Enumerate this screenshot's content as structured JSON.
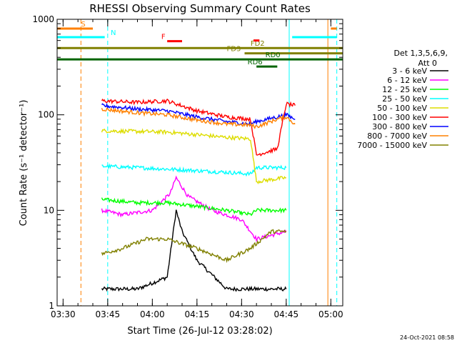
{
  "chart_data": {
    "type": "line",
    "title": "RHESSI Observing Summary Count Rates",
    "xlabel": "Start Time (26-Jul-12 03:28:02)",
    "ylabel": "Count Rate (s⁻¹ detector⁻¹)",
    "yscale": "log",
    "xlim_minutes_since_0328": [
      0,
      96
    ],
    "ylim": [
      1,
      1000
    ],
    "x_ticks": [
      "03:30",
      "03:45",
      "04:00",
      "04:15",
      "04:30",
      "04:45",
      "05:00"
    ],
    "y_ticks": [
      "1",
      "10",
      "100",
      "1000"
    ],
    "grid": false,
    "legend_placement": "right",
    "legend_header": [
      "Det 1,3,5,6,9,",
      "Att 0"
    ],
    "footer_date": "24-Oct-2021 08:58",
    "series": [
      {
        "name": "3 - 6 keV",
        "color": "#000000",
        "x": [
          "03:43",
          "03:55",
          "04:05",
          "04:08",
          "04:10",
          "04:15",
          "04:25",
          "04:35",
          "04:45"
        ],
        "values": [
          1.5,
          1.5,
          2,
          10,
          6,
          3,
          1.5,
          1.5,
          1.5
        ]
      },
      {
        "name": "6 - 12 keV",
        "color": "#ff00ff",
        "x": [
          "03:43",
          "03:50",
          "04:00",
          "04:06",
          "04:08",
          "04:12",
          "04:20",
          "04:30",
          "04:35",
          "04:45"
        ],
        "values": [
          10,
          9,
          10,
          15,
          22,
          14,
          10,
          8,
          5,
          6
        ]
      },
      {
        "name": "12 - 25 keV",
        "color": "#00ff00",
        "x": [
          "03:43",
          "03:55",
          "04:05",
          "04:15",
          "04:25",
          "04:33",
          "04:35",
          "04:45"
        ],
        "values": [
          13,
          12,
          12,
          11,
          10,
          9,
          10,
          10
        ]
      },
      {
        "name": "25 - 50 keV",
        "color": "#00ffff",
        "x": [
          "03:43",
          "03:55",
          "04:05",
          "04:15",
          "04:25",
          "04:33",
          "04:35",
          "04:45"
        ],
        "values": [
          29,
          28,
          27,
          26,
          25,
          24,
          28,
          28
        ]
      },
      {
        "name": "50 - 100 keV",
        "color": "#dddd00",
        "x": [
          "03:43",
          "03:55",
          "04:05",
          "04:15",
          "04:25",
          "04:33",
          "04:35",
          "04:45"
        ],
        "values": [
          68,
          67,
          66,
          62,
          58,
          56,
          20,
          22
        ]
      },
      {
        "name": "100 - 300 keV",
        "color": "#ff0000",
        "x": [
          "03:43",
          "03:55",
          "04:05",
          "04:15",
          "04:25",
          "04:33",
          "04:35",
          "04:42",
          "04:45",
          "04:48"
        ],
        "values": [
          140,
          135,
          140,
          110,
          95,
          90,
          38,
          44,
          130,
          125
        ]
      },
      {
        "name": "300 - 800 keV",
        "color": "#0000ff",
        "x": [
          "03:43",
          "03:55",
          "04:05",
          "04:15",
          "04:25",
          "04:33",
          "04:35",
          "04:42",
          "04:45",
          "04:48"
        ],
        "values": [
          125,
          115,
          110,
          95,
          85,
          80,
          85,
          95,
          100,
          90
        ]
      },
      {
        "name": "800 - 7000 keV",
        "color": "#ff8000",
        "x": [
          "03:43",
          "03:55",
          "04:05",
          "04:15",
          "04:25",
          "04:33",
          "04:35",
          "04:42",
          "04:45",
          "04:48"
        ],
        "values": [
          115,
          105,
          100,
          88,
          80,
          78,
          75,
          90,
          95,
          80
        ]
      },
      {
        "name": "7000 - 15000 keV",
        "color": "#808000",
        "x": [
          "03:43",
          "03:50",
          "03:58",
          "04:05",
          "04:15",
          "04:25",
          "04:33",
          "04:40",
          "04:45"
        ],
        "values": [
          3.5,
          4,
          5,
          5,
          4,
          3,
          4,
          6,
          6
        ]
      }
    ],
    "flags": [
      {
        "label": "S",
        "color": "#ff8000",
        "x_start": "03:28",
        "x_end": "03:40",
        "level": 800,
        "label_at": "03:36"
      },
      {
        "label": "N",
        "color": "#00ffff",
        "x_start": "03:28",
        "x_end": "03:44",
        "level": 650,
        "label_at": "03:46"
      },
      {
        "label": "F",
        "color": "#ff0000",
        "x_start": "04:05",
        "x_end": "04:10",
        "level": 590,
        "label_at": "04:03"
      },
      {
        "label": "FD2",
        "color": "#808000",
        "x_start": "03:28",
        "x_end": "05:04",
        "level": 500,
        "label_at": "04:33"
      },
      {
        "label": "FD3",
        "color": "#808000",
        "x_start": "04:31",
        "x_end": "05:04",
        "level": 440,
        "label_at": "04:25"
      },
      {
        "label": "RD0",
        "color": "#006400",
        "x_start": "03:28",
        "x_end": "05:04",
        "level": 380,
        "label_at": "04:38"
      },
      {
        "label": "RD6",
        "color": "#006400",
        "x_start": "04:35",
        "x_end": "04:42",
        "level": 320,
        "label_at": "04:32"
      }
    ],
    "small_flag_segments": [
      {
        "color": "#ff0000",
        "x_start": "04:34",
        "x_end": "04:36",
        "level": 600
      },
      {
        "color": "#ff8000",
        "x_start": "05:00",
        "x_end": "05:02",
        "level": 800
      },
      {
        "color": "#00ffff",
        "x_start": "04:47",
        "x_end": "05:02",
        "level": 650
      }
    ],
    "vertical_markers": [
      {
        "color": "#ff8000",
        "x": "03:36",
        "style": "dashed"
      },
      {
        "color": "#00ffff",
        "x": "03:45",
        "style": "dashed"
      },
      {
        "color": "#00ffff",
        "x": "04:46",
        "style": "solid"
      },
      {
        "color": "#ff8000",
        "x": "04:59",
        "style": "solid"
      },
      {
        "color": "#00ffff",
        "x": "05:02",
        "style": "dashed"
      }
    ]
  }
}
